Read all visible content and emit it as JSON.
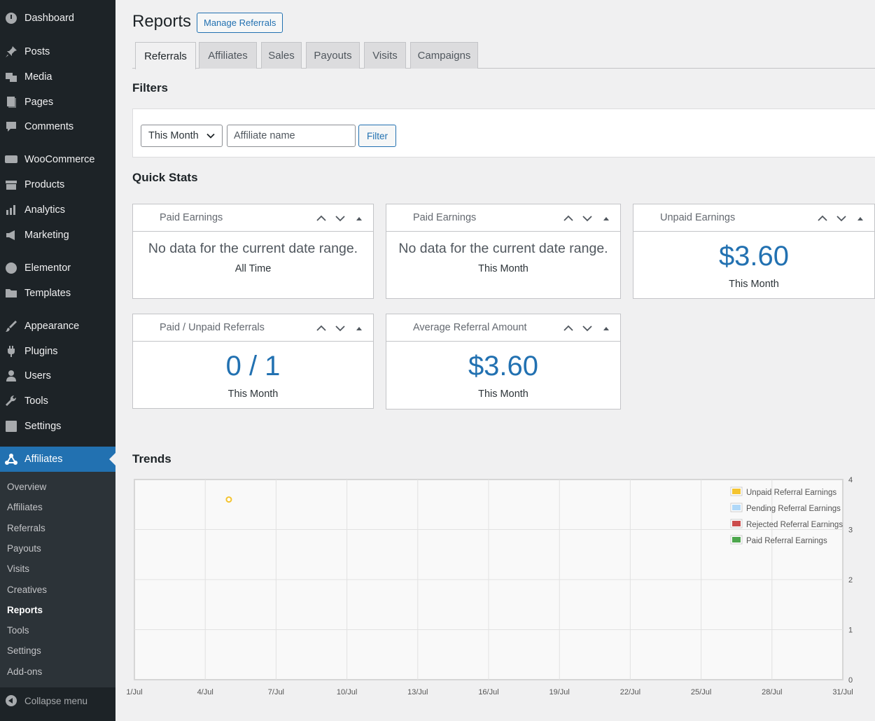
{
  "sidebar": {
    "items": [
      {
        "label": "Dashboard",
        "icon": "dashboard-icon"
      },
      {
        "label": "Posts",
        "icon": "pin-icon"
      },
      {
        "label": "Media",
        "icon": "media-icon"
      },
      {
        "label": "Pages",
        "icon": "pages-icon"
      },
      {
        "label": "Comments",
        "icon": "comments-icon"
      },
      {
        "label": "WooCommerce",
        "icon": "woo-icon"
      },
      {
        "label": "Products",
        "icon": "products-icon"
      },
      {
        "label": "Analytics",
        "icon": "analytics-icon"
      },
      {
        "label": "Marketing",
        "icon": "megaphone-icon"
      },
      {
        "label": "Elementor",
        "icon": "elementor-icon"
      },
      {
        "label": "Templates",
        "icon": "folder-icon"
      },
      {
        "label": "Appearance",
        "icon": "brush-icon"
      },
      {
        "label": "Plugins",
        "icon": "plugin-icon"
      },
      {
        "label": "Users",
        "icon": "users-icon"
      },
      {
        "label": "Tools",
        "icon": "wrench-icon"
      },
      {
        "label": "Settings",
        "icon": "settings-icon"
      },
      {
        "label": "Affiliates",
        "icon": "affiliates-icon"
      }
    ],
    "submenu": [
      "Overview",
      "Affiliates",
      "Referrals",
      "Payouts",
      "Visits",
      "Creatives",
      "Reports",
      "Tools",
      "Settings",
      "Add-ons"
    ],
    "collapse_label": "Collapse menu"
  },
  "header": {
    "title": "Reports",
    "manage_button": "Manage Referrals"
  },
  "tabs": [
    "Referrals",
    "Affiliates",
    "Sales",
    "Payouts",
    "Visits",
    "Campaigns"
  ],
  "filters": {
    "title": "Filters",
    "date_select": "This Month",
    "affiliate_placeholder": "Affiliate name",
    "filter_button": "Filter"
  },
  "quick_stats": {
    "title": "Quick Stats",
    "boxes": [
      {
        "title": "Paid Earnings",
        "value": "No data for the current date range.",
        "period": "All Time"
      },
      {
        "title": "Paid Earnings",
        "value": "No data for the current date range.",
        "period": "This Month"
      },
      {
        "title": "Unpaid Earnings",
        "value": "$3.60",
        "period": "This Month"
      },
      {
        "title": "Paid / Unpaid Referrals",
        "value": "0 / 1",
        "period": "This Month"
      },
      {
        "title": "Average Referral Amount",
        "value": "$3.60",
        "period": "This Month"
      }
    ]
  },
  "trends": {
    "title": "Trends"
  },
  "colors": {
    "accent": "#2271b1",
    "sidebar_bg": "#1d2327",
    "unpaid": "#f4c430",
    "pending": "#afd8f8",
    "rejected": "#cb4b4b",
    "paid": "#4da74d"
  },
  "chart_data": {
    "type": "line",
    "x": [
      "1/Jul",
      "4/Jul",
      "7/Jul",
      "10/Jul",
      "13/Jul",
      "16/Jul",
      "19/Jul",
      "22/Jul",
      "25/Jul",
      "28/Jul",
      "31/Jul"
    ],
    "x_range": [
      1,
      31
    ],
    "ylim": [
      0,
      4
    ],
    "y_ticks": [
      "0",
      "1",
      "2",
      "3",
      "4"
    ],
    "y_axis_side": "right",
    "legend_placement": "top-right",
    "grid": true,
    "series": [
      {
        "name": "Unpaid Referral Earnings",
        "color": "#f4c430",
        "points": [
          [
            5,
            3.6
          ]
        ]
      },
      {
        "name": "Pending Referral Earnings",
        "color": "#afd8f8",
        "points": []
      },
      {
        "name": "Rejected Referral Earnings",
        "color": "#cb4b4b",
        "points": []
      },
      {
        "name": "Paid Referral Earnings",
        "color": "#4da74d",
        "points": []
      }
    ]
  }
}
